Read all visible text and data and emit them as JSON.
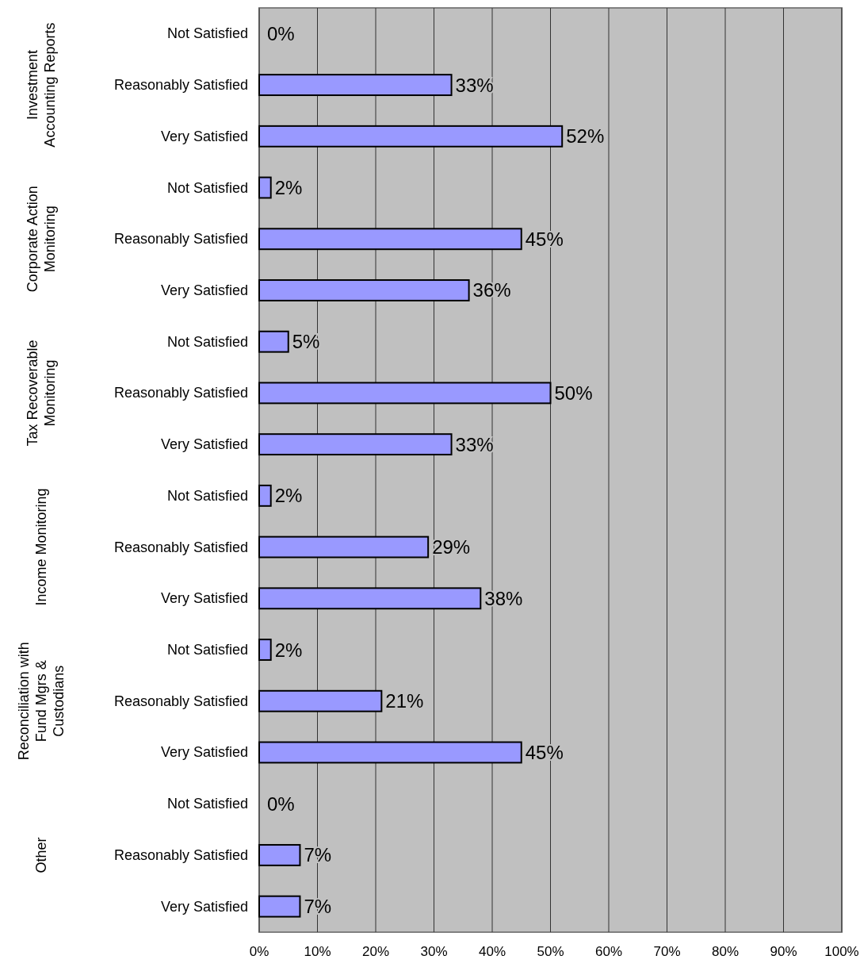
{
  "chart_data": {
    "type": "bar",
    "orientation": "horizontal",
    "categories": [
      "Not Satisfied",
      "Reasonably Satisfied",
      "Very Satisfied",
      "Not Satisfied",
      "Reasonably Satisfied",
      "Very Satisfied",
      "Not Satisfied",
      "Reasonably Satisfied",
      "Very Satisfied",
      "Not Satisfied",
      "Reasonably Satisfied",
      "Very Satisfied",
      "Not Satisfied",
      "Reasonably Satisfied",
      "Very Satisfied",
      "Not Satisfied",
      "Reasonably Satisfied",
      "Very Satisfied"
    ],
    "values": [
      0,
      33,
      52,
      2,
      45,
      36,
      5,
      50,
      33,
      2,
      29,
      38,
      2,
      21,
      45,
      0,
      7,
      7
    ],
    "value_labels": [
      "0%",
      "33%",
      "52%",
      "2%",
      "45%",
      "36%",
      "5%",
      "50%",
      "33%",
      "2%",
      "29%",
      "38%",
      "2%",
      "21%",
      "45%",
      "0%",
      "7%",
      "7%"
    ],
    "color": "#9999ff",
    "annotations": [
      "Investment Accounting Reports",
      "Corporate Action Monitoring",
      "Tax Recoverable Monitoring",
      "Income Monitoring",
      "Reconciliation with Fund Mgrs & Custodians",
      "Other"
    ],
    "xlim": [
      0,
      100
    ],
    "xticks": [
      {
        "value": 0,
        "label": "0%"
      },
      {
        "value": 10,
        "label": "10%"
      },
      {
        "value": 20,
        "label": "20%"
      },
      {
        "value": 30,
        "label": "30%"
      },
      {
        "value": 40,
        "label": "40%"
      },
      {
        "value": 50,
        "label": "50%"
      },
      {
        "value": 60,
        "label": "60%"
      },
      {
        "value": 70,
        "label": "70%"
      },
      {
        "value": 80,
        "label": "80%"
      },
      {
        "value": 90,
        "label": "90%"
      },
      {
        "value": 100,
        "label": "100%"
      }
    ],
    "grid": "x"
  }
}
